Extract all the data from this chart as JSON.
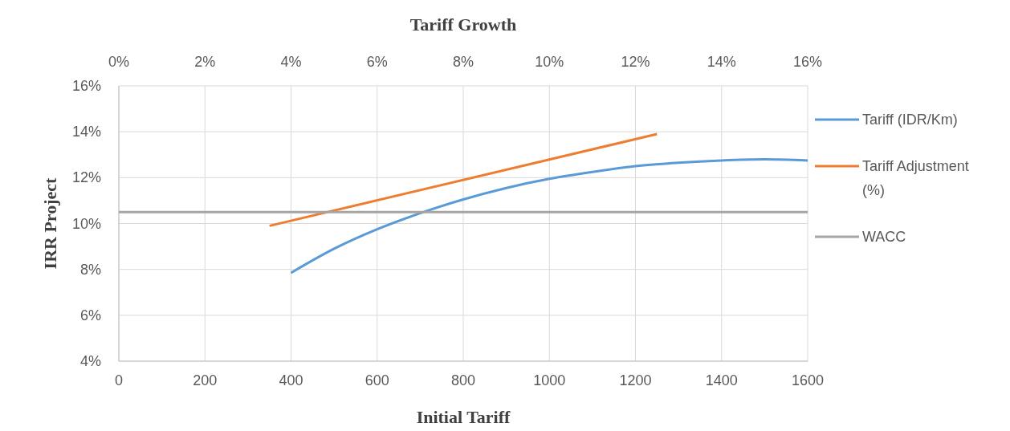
{
  "chart_data": {
    "type": "line",
    "xlabel": "Initial Tariff",
    "x2label": "Tariff Growth",
    "ylabel": "IRR Project",
    "xlim": [
      0,
      1600
    ],
    "xticks": [
      0,
      200,
      400,
      600,
      800,
      1000,
      1200,
      1400,
      1600
    ],
    "x2lim": [
      0,
      16
    ],
    "x2ticks": [
      {
        "value": 0,
        "label": "0%"
      },
      {
        "value": 2,
        "label": "2%"
      },
      {
        "value": 4,
        "label": "4%"
      },
      {
        "value": 6,
        "label": "6%"
      },
      {
        "value": 8,
        "label": "8%"
      },
      {
        "value": 10,
        "label": "10%"
      },
      {
        "value": 12,
        "label": "12%"
      },
      {
        "value": 14,
        "label": "14%"
      },
      {
        "value": 16,
        "label": "16%"
      }
    ],
    "ylim": [
      4,
      16
    ],
    "yticks": [
      {
        "value": 4,
        "label": "4%"
      },
      {
        "value": 6,
        "label": "6%"
      },
      {
        "value": 8,
        "label": "8%"
      },
      {
        "value": 10,
        "label": "10%"
      },
      {
        "value": 12,
        "label": "12%"
      },
      {
        "value": 14,
        "label": "14%"
      },
      {
        "value": 16,
        "label": "16%"
      }
    ],
    "grid": true,
    "legend": "right",
    "marker": "none",
    "line_style": "solid",
    "series": [
      {
        "name": "Tariff (IDR/Km)",
        "color": "#5b9bd5",
        "x": [
          400,
          500,
          600,
          700,
          800,
          900,
          1000,
          1100,
          1200,
          1300,
          1400,
          1500,
          1600
        ],
        "values": [
          7.85,
          8.9,
          9.75,
          10.45,
          11.05,
          11.55,
          11.95,
          12.25,
          12.5,
          12.65,
          12.75,
          12.8,
          12.75
        ]
      },
      {
        "name": "Tariff Adjustment (%)",
        "color": "#ed7d31",
        "axis": "x2",
        "x": [
          3.5,
          12.5
        ],
        "values": [
          9.9,
          13.9
        ]
      },
      {
        "name": "WACC",
        "color": "#a5a5a5",
        "x": [
          0,
          1600
        ],
        "values": [
          10.5,
          10.5
        ]
      }
    ]
  }
}
